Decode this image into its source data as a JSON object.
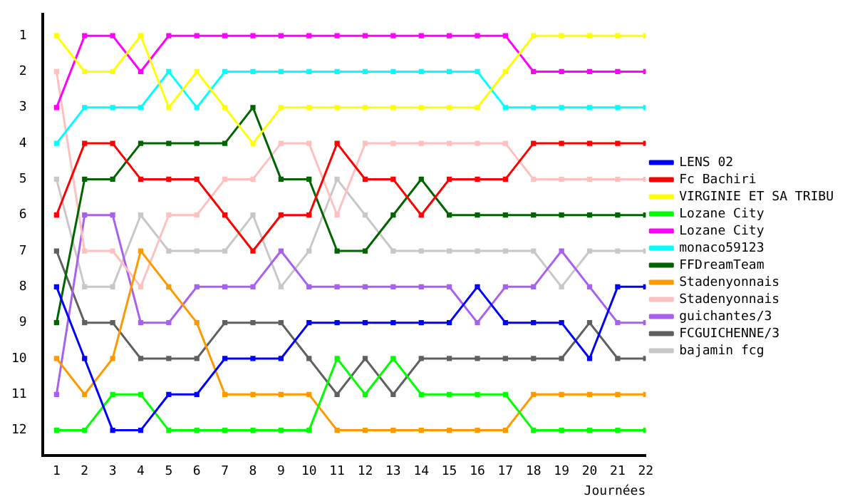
{
  "chart_data": {
    "type": "line",
    "xlabel": "Journées",
    "x": [
      1,
      2,
      3,
      4,
      5,
      6,
      7,
      8,
      9,
      10,
      11,
      12,
      13,
      14,
      15,
      16,
      17,
      18,
      19,
      20,
      21,
      22
    ],
    "xlim": [
      0.5,
      22
    ],
    "xticks": [
      1,
      2,
      3,
      4,
      5,
      6,
      7,
      8,
      9,
      10,
      11,
      12,
      13,
      14,
      15,
      16,
      17,
      18,
      19,
      20,
      21,
      22
    ],
    "ylim": [
      12.7,
      0.4
    ],
    "yticks": [
      1,
      2,
      3,
      4,
      5,
      6,
      7,
      8,
      9,
      10,
      11,
      12
    ],
    "grid": false,
    "legend": "right",
    "marker": "square",
    "line_style": "solid",
    "series": [
      {
        "name": "LENS 02",
        "color": "#0000ff",
        "values": [
          8,
          10,
          12,
          12,
          11,
          11,
          10,
          10,
          10,
          9,
          9,
          9,
          9,
          9,
          9,
          8,
          9,
          9,
          9,
          10,
          8,
          8
        ]
      },
      {
        "name": "Fc Bachiri",
        "color": "#ff0000",
        "values": [
          6,
          4,
          4,
          5,
          5,
          5,
          6,
          7,
          6,
          6,
          4,
          5,
          5,
          6,
          5,
          5,
          5,
          4,
          4,
          4,
          4,
          4
        ]
      },
      {
        "name": "VIRGINIE ET SA TRIBU",
        "color": "#ffff00",
        "values": [
          1,
          2,
          2,
          1,
          3,
          2,
          3,
          4,
          3,
          3,
          3,
          3,
          3,
          3,
          3,
          3,
          2,
          1,
          1,
          1,
          1,
          1
        ]
      },
      {
        "name": "Lozane City",
        "color": "#00ff00",
        "values": [
          12,
          12,
          11,
          11,
          12,
          12,
          12,
          12,
          12,
          12,
          10,
          11,
          10,
          11,
          11,
          11,
          11,
          12,
          12,
          12,
          12,
          12
        ]
      },
      {
        "name": "Lozane City",
        "color": "#ff00ff",
        "values": [
          3,
          1,
          1,
          2,
          1,
          1,
          1,
          1,
          1,
          1,
          1,
          1,
          1,
          1,
          1,
          1,
          1,
          2,
          2,
          2,
          2,
          2
        ]
      },
      {
        "name": "monaco59123",
        "color": "#00ffff",
        "values": [
          4,
          3,
          3,
          3,
          2,
          3,
          2,
          2,
          2,
          2,
          2,
          2,
          2,
          2,
          2,
          2,
          3,
          3,
          3,
          3,
          3,
          3
        ]
      },
      {
        "name": "FFDreamTeam",
        "color": "#006400",
        "values": [
          9,
          5,
          5,
          4,
          4,
          4,
          4,
          3,
          5,
          5,
          7,
          7,
          6,
          5,
          6,
          6,
          6,
          6,
          6,
          6,
          6,
          6
        ]
      },
      {
        "name": "Stadenyonnais",
        "color": "#ff9900",
        "values": [
          10,
          11,
          10,
          7,
          8,
          9,
          11,
          11,
          11,
          11,
          12,
          12,
          12,
          12,
          12,
          12,
          12,
          11,
          11,
          11,
          11,
          11
        ]
      },
      {
        "name": "Stadenyonnais",
        "color": "#ffc0c0",
        "values": [
          2,
          7,
          7,
          8,
          6,
          6,
          5,
          5,
          4,
          4,
          6,
          4,
          4,
          4,
          4,
          4,
          4,
          5,
          5,
          5,
          5,
          5
        ]
      },
      {
        "name": "guichantes/3",
        "color": "#a860f0",
        "values": [
          11,
          6,
          6,
          9,
          9,
          8,
          8,
          8,
          7,
          8,
          8,
          8,
          8,
          8,
          8,
          9,
          8,
          8,
          7,
          8,
          9,
          9
        ]
      },
      {
        "name": "FCGUICHENNE/3",
        "color": "#606060",
        "values": [
          7,
          9,
          9,
          10,
          10,
          10,
          9,
          9,
          9,
          10,
          11,
          10,
          11,
          10,
          10,
          10,
          10,
          10,
          10,
          9,
          10,
          10
        ]
      },
      {
        "name": "bajamin fcg",
        "color": "#c8c8c8",
        "values": [
          5,
          8,
          8,
          6,
          7,
          7,
          7,
          6,
          8,
          7,
          5,
          6,
          7,
          7,
          7,
          7,
          7,
          7,
          8,
          7,
          7,
          7
        ]
      }
    ]
  }
}
